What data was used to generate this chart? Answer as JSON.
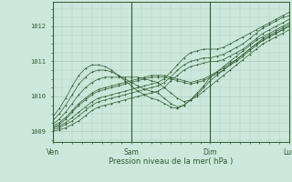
{
  "background_color": "#cce8dc",
  "line_color": "#2d5a2d",
  "marker": "+",
  "grid_color": "#aaccbb",
  "xlabel": "Pression niveau de la mer( hPa )",
  "xlim": [
    0,
    72
  ],
  "ylim": [
    1008.7,
    1012.7
  ],
  "yticks": [
    1009,
    1010,
    1011,
    1012
  ],
  "xtick_labels": [
    "Ven",
    "Sam",
    "Dim",
    "Lun"
  ],
  "xtick_positions": [
    0,
    24,
    48,
    72
  ],
  "vline_positions": [
    0,
    24,
    48,
    72
  ],
  "n_points": 37,
  "series": [
    [
      1009.05,
      1009.1,
      1009.2,
      1009.3,
      1009.45,
      1009.6,
      1009.75,
      1009.85,
      1009.9,
      1009.95,
      1010.0,
      1010.05,
      1010.1,
      1010.15,
      1010.2,
      1010.25,
      1010.3,
      1010.4,
      1010.55,
      1010.75,
      1010.9,
      1011.0,
      1011.05,
      1011.1,
      1011.1,
      1011.15,
      1011.2,
      1011.3,
      1011.4,
      1011.5,
      1011.65,
      1011.8,
      1011.95,
      1012.05,
      1012.15,
      1012.25,
      1012.3
    ],
    [
      1009.1,
      1009.15,
      1009.25,
      1009.4,
      1009.55,
      1009.7,
      1009.85,
      1009.95,
      1010.0,
      1010.05,
      1010.1,
      1010.15,
      1010.2,
      1010.25,
      1010.3,
      1010.35,
      1010.4,
      1010.5,
      1010.7,
      1010.9,
      1011.1,
      1011.25,
      1011.3,
      1011.35,
      1011.35,
      1011.35,
      1011.4,
      1011.5,
      1011.6,
      1011.7,
      1011.8,
      1011.9,
      1012.0,
      1012.1,
      1012.2,
      1012.3,
      1012.4
    ],
    [
      1009.0,
      1009.05,
      1009.1,
      1009.2,
      1009.3,
      1009.45,
      1009.6,
      1009.7,
      1009.75,
      1009.8,
      1009.85,
      1009.9,
      1009.95,
      1010.0,
      1010.05,
      1010.1,
      1010.15,
      1010.25,
      1010.45,
      1010.6,
      1010.75,
      1010.85,
      1010.9,
      1010.95,
      1011.0,
      1011.0,
      1011.05,
      1011.15,
      1011.25,
      1011.35,
      1011.5,
      1011.65,
      1011.8,
      1011.9,
      1012.0,
      1012.1,
      1012.2
    ],
    [
      1009.1,
      1009.2,
      1009.35,
      1009.55,
      1009.75,
      1009.9,
      1010.05,
      1010.15,
      1010.2,
      1010.25,
      1010.3,
      1010.35,
      1010.4,
      1010.45,
      1010.5,
      1010.55,
      1010.55,
      1010.55,
      1010.5,
      1010.45,
      1010.4,
      1010.35,
      1010.4,
      1010.45,
      1010.55,
      1010.65,
      1010.75,
      1010.9,
      1011.0,
      1011.15,
      1011.3,
      1011.45,
      1011.6,
      1011.7,
      1011.8,
      1011.9,
      1012.0
    ],
    [
      1009.15,
      1009.25,
      1009.4,
      1009.6,
      1009.8,
      1009.95,
      1010.1,
      1010.2,
      1010.25,
      1010.3,
      1010.35,
      1010.4,
      1010.45,
      1010.5,
      1010.55,
      1010.6,
      1010.6,
      1010.6,
      1010.55,
      1010.5,
      1010.45,
      1010.4,
      1010.45,
      1010.5,
      1010.6,
      1010.7,
      1010.8,
      1010.95,
      1011.05,
      1011.2,
      1011.35,
      1011.5,
      1011.65,
      1011.75,
      1011.85,
      1011.95,
      1012.05
    ],
    [
      1009.2,
      1009.35,
      1009.55,
      1009.8,
      1010.05,
      1010.25,
      1010.4,
      1010.5,
      1010.55,
      1010.55,
      1010.55,
      1010.55,
      1010.55,
      1010.55,
      1010.5,
      1010.45,
      1010.4,
      1010.25,
      1010.1,
      1009.95,
      1009.85,
      1009.9,
      1010.0,
      1010.15,
      1010.3,
      1010.45,
      1010.6,
      1010.75,
      1010.9,
      1011.05,
      1011.2,
      1011.35,
      1011.5,
      1011.6,
      1011.7,
      1011.8,
      1011.9
    ],
    [
      1009.3,
      1009.5,
      1009.75,
      1010.05,
      1010.35,
      1010.55,
      1010.7,
      1010.75,
      1010.75,
      1010.7,
      1010.6,
      1010.5,
      1010.4,
      1010.3,
      1010.2,
      1010.15,
      1010.1,
      1009.95,
      1009.8,
      1009.7,
      1009.75,
      1009.9,
      1010.05,
      1010.25,
      1010.45,
      1010.6,
      1010.75,
      1010.9,
      1011.05,
      1011.2,
      1011.35,
      1011.5,
      1011.6,
      1011.7,
      1011.8,
      1011.9,
      1012.0
    ],
    [
      1009.4,
      1009.65,
      1009.95,
      1010.3,
      1010.6,
      1010.8,
      1010.9,
      1010.9,
      1010.85,
      1010.75,
      1010.6,
      1010.45,
      1010.3,
      1010.15,
      1010.05,
      1009.95,
      1009.9,
      1009.8,
      1009.7,
      1009.65,
      1009.75,
      1009.9,
      1010.1,
      1010.3,
      1010.55,
      1010.7,
      1010.85,
      1011.0,
      1011.15,
      1011.3,
      1011.45,
      1011.6,
      1011.7,
      1011.8,
      1011.9,
      1012.0,
      1012.1
    ]
  ]
}
